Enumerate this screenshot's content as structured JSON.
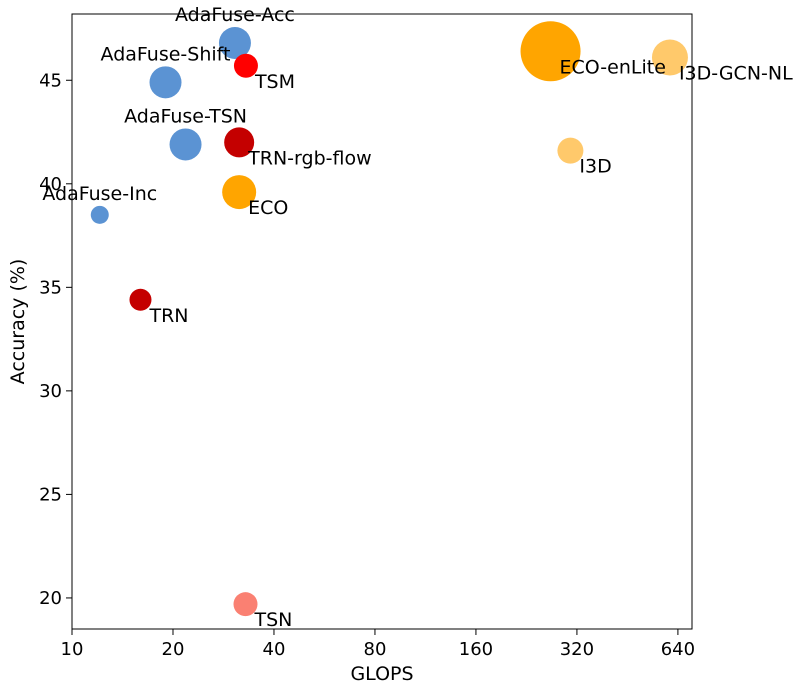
{
  "chart_data": {
    "type": "scatter",
    "title": "",
    "xlabel": "GLOPS",
    "ylabel": "Accuracy (%)",
    "x_scale": "log2",
    "xlim": [
      10,
      705
    ],
    "ylim": [
      18.5,
      48.2
    ],
    "x_ticks": [
      10,
      20,
      40,
      80,
      160,
      320,
      640
    ],
    "x_tick_labels": [
      "10",
      "20",
      "40",
      "80",
      "160",
      "320",
      "640"
    ],
    "y_ticks": [
      20,
      25,
      30,
      35,
      40,
      45
    ],
    "y_tick_labels": [
      "20",
      "25",
      "30",
      "35",
      "40",
      "45"
    ],
    "grid": false,
    "legend": "none",
    "points": [
      {
        "label": "AdaFuse-Acc",
        "x": 30.6,
        "y": 46.8,
        "color": "#5b93d3",
        "size": 16,
        "label_pos": "above"
      },
      {
        "label": "AdaFuse-Shift",
        "x": 19.0,
        "y": 44.9,
        "color": "#5b93d3",
        "size": 16,
        "label_pos": "above"
      },
      {
        "label": "AdaFuse-TSN",
        "x": 21.8,
        "y": 41.9,
        "color": "#5b93d3",
        "size": 16,
        "label_pos": "above"
      },
      {
        "label": "AdaFuse-Inc",
        "x": 12.1,
        "y": 38.5,
        "color": "#5b93d3",
        "size": 9,
        "label_pos": "above"
      },
      {
        "label": "TSM",
        "x": 33.0,
        "y": 45.7,
        "color": "#ff0000",
        "size": 12,
        "label_pos": "below-right"
      },
      {
        "label": "TRN-rgb-flow",
        "x": 31.5,
        "y": 42.0,
        "color": "#c40000",
        "size": 15,
        "label_pos": "below-right"
      },
      {
        "label": "TRN",
        "x": 16.0,
        "y": 34.4,
        "color": "#c40000",
        "size": 11,
        "label_pos": "below-right"
      },
      {
        "label": "TSN",
        "x": 32.9,
        "y": 19.7,
        "color": "#fa8072",
        "size": 12,
        "label_pos": "below-right"
      },
      {
        "label": "ECO",
        "x": 31.5,
        "y": 39.6,
        "color": "#ffa500",
        "size": 17,
        "label_pos": "below-right"
      },
      {
        "label": "ECO-enLite",
        "x": 267,
        "y": 46.4,
        "color": "#ffa500",
        "size": 30,
        "label_pos": "below-right"
      },
      {
        "label": "I3D",
        "x": 306,
        "y": 41.6,
        "color": "#ffc96b",
        "size": 13,
        "label_pos": "below-right"
      },
      {
        "label": "I3D-GCN-NL",
        "x": 606,
        "y": 46.1,
        "color": "#ffc96b",
        "size": 18,
        "label_pos": "below-right"
      }
    ]
  }
}
